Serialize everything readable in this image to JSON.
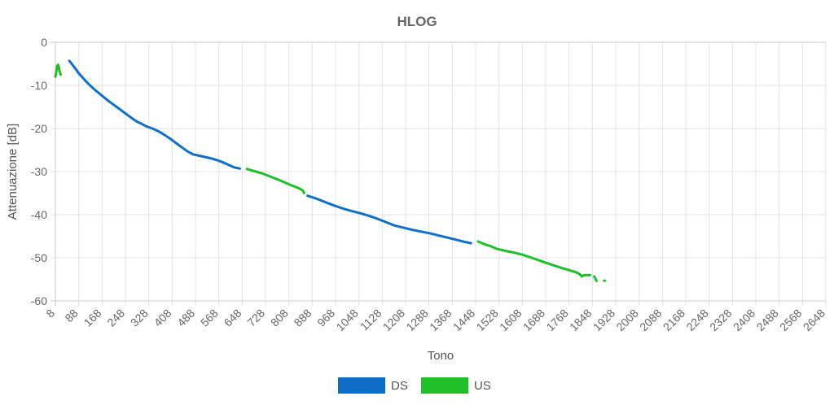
{
  "chart_data": {
    "type": "line",
    "title": "HLOG",
    "xlabel": "Tono",
    "ylabel": "Attenuazione [dB]",
    "xlim": [
      8,
      2648
    ],
    "ylim": [
      -60,
      0
    ],
    "x_ticks": [
      8,
      88,
      168,
      248,
      328,
      408,
      488,
      568,
      648,
      728,
      808,
      888,
      968,
      1048,
      1128,
      1208,
      1288,
      1368,
      1448,
      1528,
      1608,
      1688,
      1768,
      1848,
      1928,
      2008,
      2088,
      2168,
      2248,
      2328,
      2408,
      2488,
      2568,
      2648
    ],
    "x_tick_labels": [
      "8",
      "88",
      "168",
      "248",
      "328",
      "408",
      "488",
      "568",
      "648",
      "728",
      "808",
      "888",
      "968",
      "1048",
      "1128",
      "1208",
      "1288",
      "1368",
      "1448",
      "1528",
      "1608",
      "1688",
      "1768",
      "1848",
      "1928",
      "2008",
      "2088",
      "2168",
      "2248",
      "2328",
      "2408",
      "2488",
      "2568",
      "2648"
    ],
    "y_ticks": [
      0,
      -10,
      -20,
      -30,
      -40,
      -50,
      -60
    ],
    "y_tick_labels": [
      "0",
      "-10",
      "-20",
      "-30",
      "-40",
      "-50",
      "-60"
    ],
    "grid": true,
    "legend_position": "bottom",
    "series": [
      {
        "name": "DS",
        "color": "#0f6fc6",
        "segments": [
          [
            [
              56,
              -4.3
            ],
            [
              64,
              -5.0
            ],
            [
              72,
              -5.7
            ],
            [
              80,
              -6.4
            ],
            [
              88,
              -7.2
            ],
            [
              100,
              -8.1
            ],
            [
              112,
              -9.0
            ],
            [
              128,
              -10.1
            ],
            [
              148,
              -11.3
            ],
            [
              168,
              -12.4
            ],
            [
              190,
              -13.6
            ],
            [
              210,
              -14.6
            ],
            [
              230,
              -15.6
            ],
            [
              250,
              -16.6
            ],
            [
              270,
              -17.6
            ],
            [
              290,
              -18.5
            ],
            [
              300,
              -18.8
            ],
            [
              320,
              -19.5
            ],
            [
              340,
              -20.0
            ],
            [
              360,
              -20.6
            ],
            [
              380,
              -21.4
            ],
            [
              400,
              -22.3
            ],
            [
              420,
              -23.3
            ],
            [
              440,
              -24.3
            ],
            [
              460,
              -25.3
            ],
            [
              480,
              -26.0
            ],
            [
              500,
              -26.3
            ],
            [
              520,
              -26.6
            ],
            [
              540,
              -26.9
            ],
            [
              560,
              -27.3
            ],
            [
              580,
              -27.8
            ],
            [
              600,
              -28.4
            ],
            [
              620,
              -29.0
            ],
            [
              640,
              -29.3
            ]
          ],
          [
            [
              872,
              -35.6
            ],
            [
              900,
              -36.2
            ],
            [
              930,
              -37.0
            ],
            [
              960,
              -37.8
            ],
            [
              990,
              -38.5
            ],
            [
              1020,
              -39.1
            ],
            [
              1050,
              -39.6
            ],
            [
              1080,
              -40.2
            ],
            [
              1110,
              -40.9
            ],
            [
              1140,
              -41.7
            ],
            [
              1170,
              -42.5
            ],
            [
              1200,
              -43.0
            ],
            [
              1230,
              -43.5
            ],
            [
              1260,
              -43.9
            ],
            [
              1290,
              -44.3
            ],
            [
              1320,
              -44.8
            ],
            [
              1350,
              -45.3
            ],
            [
              1380,
              -45.8
            ],
            [
              1410,
              -46.3
            ],
            [
              1432,
              -46.6
            ]
          ]
        ]
      },
      {
        "name": "US",
        "color": "#1fbf2a",
        "segments": [
          [
            [
              8,
              -8.0
            ],
            [
              10,
              -7.3
            ],
            [
              14,
              -5.5
            ],
            [
              17,
              -5.2
            ],
            [
              20,
              -5.7
            ],
            [
              22,
              -6.8
            ],
            [
              24,
              -6.9
            ],
            [
              26,
              -7.5
            ]
          ],
          [
            [
              664,
              -29.4
            ],
            [
              690,
              -29.9
            ],
            [
              720,
              -30.5
            ],
            [
              750,
              -31.3
            ],
            [
              780,
              -32.1
            ],
            [
              810,
              -33.0
            ],
            [
              840,
              -33.8
            ],
            [
              856,
              -34.4
            ],
            [
              860,
              -35.0
            ]
          ],
          [
            [
              1456,
              -46.2
            ],
            [
              1480,
              -46.9
            ],
            [
              1500,
              -47.3
            ],
            [
              1520,
              -47.9
            ],
            [
              1550,
              -48.4
            ],
            [
              1580,
              -48.8
            ],
            [
              1610,
              -49.3
            ],
            [
              1640,
              -50.0
            ],
            [
              1670,
              -50.7
            ],
            [
              1700,
              -51.4
            ],
            [
              1730,
              -52.1
            ],
            [
              1760,
              -52.7
            ],
            [
              1790,
              -53.3
            ],
            [
              1805,
              -53.8
            ],
            [
              1812,
              -54.3
            ],
            [
              1820,
              -54.0
            ],
            [
              1840,
              -54.0
            ]
          ],
          [
            [
              1854,
              -54.3
            ],
            [
              1860,
              -55.0
            ],
            [
              1862,
              -55.4
            ]
          ],
          [
            [
              1888,
              -55.3
            ],
            [
              1891,
              -55.3
            ]
          ]
        ]
      }
    ]
  }
}
